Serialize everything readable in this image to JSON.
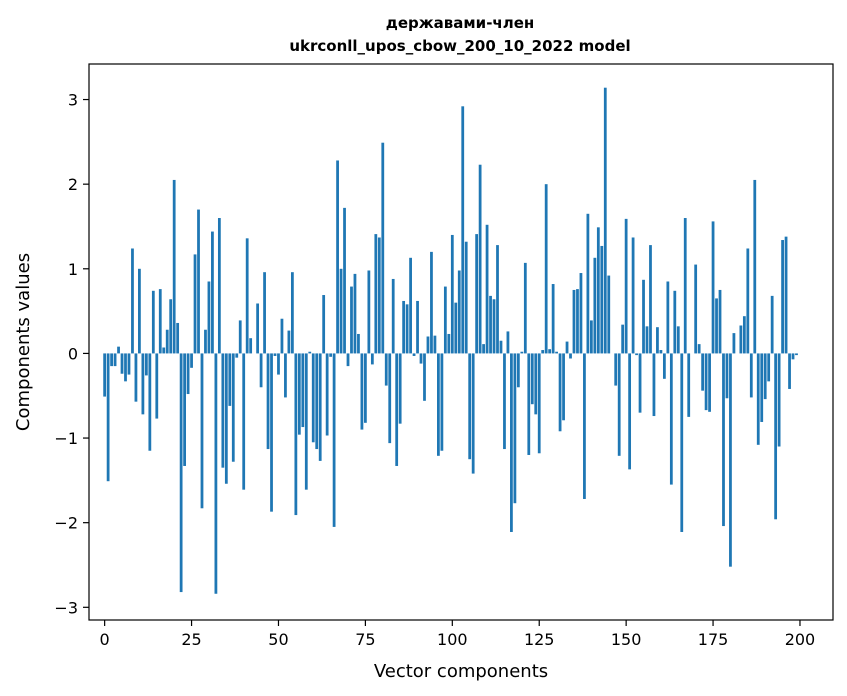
{
  "chart_data": {
    "type": "bar",
    "title_lines": [
      "державами-член",
      "ukrconll_upos_cbow_200_10_2022 model"
    ],
    "xlabel": "Vector components",
    "ylabel": "Components values",
    "xlim": [
      -4.5,
      209.5
    ],
    "ylim": [
      -3.15,
      3.42
    ],
    "xticks": [
      0,
      25,
      50,
      75,
      100,
      125,
      150,
      175,
      200
    ],
    "yticks": [
      -3,
      -2,
      -1,
      0,
      1,
      2,
      3
    ],
    "ytick_labels": [
      "−3",
      "−2",
      "−1",
      "0",
      "1",
      "2",
      "3"
    ],
    "grid": false,
    "bar_color": "#1f77b4",
    "series": [
      {
        "x_start": 0,
        "values": [
          -0.51,
          -1.51,
          -0.15,
          -0.15,
          0.08,
          -0.24,
          -0.33,
          -0.25,
          1.24,
          -0.57,
          1.0,
          -0.72,
          -0.26,
          -1.15,
          0.74,
          -0.77,
          0.76,
          0.07,
          0.28,
          0.64,
          2.05,
          0.36,
          -2.82,
          -1.33,
          -0.48,
          -0.17,
          1.17,
          1.7,
          -1.83,
          0.28,
          0.85,
          1.44,
          -2.84,
          1.6,
          -1.35,
          -1.54,
          -0.62,
          -1.28,
          -0.05,
          0.39,
          -1.61,
          1.36,
          0.18,
          0.0,
          0.59,
          -0.4,
          0.96,
          -1.13,
          -1.87,
          -0.03,
          -0.25,
          0.41,
          -0.52,
          0.27,
          0.96,
          -1.91,
          -0.96,
          -0.87,
          -1.61,
          0.02,
          -1.05,
          -1.13,
          -1.27,
          0.69,
          -0.97,
          -0.04,
          -2.05,
          2.28,
          1.0,
          1.72,
          -0.15,
          0.79,
          0.94,
          0.23,
          -0.9,
          -0.82,
          0.98,
          -0.13,
          1.41,
          1.37,
          2.49,
          -0.38,
          -1.06,
          0.88,
          -1.33,
          -0.83,
          0.62,
          0.58,
          1.13,
          -0.03,
          0.62,
          -0.12,
          -0.56,
          0.2,
          1.2,
          0.21,
          -1.21,
          -1.15,
          0.79,
          0.23,
          1.4,
          0.6,
          0.98,
          2.92,
          1.32,
          -1.25,
          -1.42,
          1.41,
          2.23,
          0.11,
          1.52,
          0.68,
          0.64,
          1.28,
          0.15,
          -1.13,
          0.26,
          -2.11,
          -1.77,
          -0.4,
          0.02,
          1.07,
          -1.2,
          -0.6,
          -0.72,
          -1.18,
          0.04,
          2.0,
          0.05,
          0.82,
          0.02,
          -0.92,
          -0.79,
          0.14,
          -0.06,
          0.75,
          0.76,
          0.95,
          -1.72,
          1.65,
          0.39,
          1.13,
          1.49,
          1.27,
          3.14,
          0.92,
          0.0,
          -0.38,
          -1.21,
          0.34,
          1.59,
          -1.37,
          1.37,
          -0.02,
          -0.7,
          0.87,
          0.32,
          1.28,
          -0.74,
          0.31,
          0.04,
          -0.3,
          0.85,
          -1.55,
          0.74,
          0.32,
          -2.11,
          1.6,
          -0.75,
          0.0,
          1.05,
          0.11,
          -0.44,
          -0.67,
          -0.69,
          1.56,
          0.65,
          0.75,
          -2.04,
          -0.53,
          -2.52,
          0.24,
          0.0,
          0.33,
          0.44,
          1.24,
          -0.52,
          2.05,
          -1.08,
          -0.81,
          -0.54,
          -0.33,
          0.68,
          -1.96,
          -1.1,
          1.34,
          1.38,
          -0.42,
          -0.07,
          -0.02
        ]
      }
    ]
  }
}
